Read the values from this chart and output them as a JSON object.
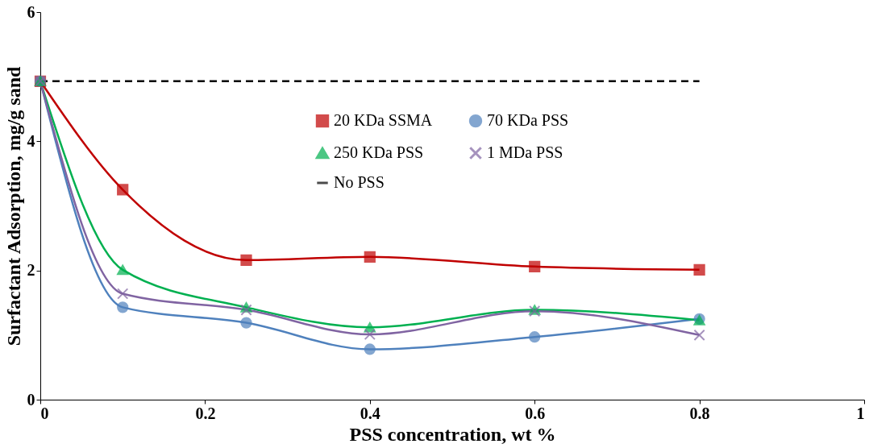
{
  "chart_data": {
    "type": "line",
    "xlabel": "PSS concentration, wt %",
    "ylabel": "Surfactant Adsorption, mg/g sand",
    "xlim": [
      0,
      1
    ],
    "xticks": [
      0,
      0.2,
      0.4,
      0.6,
      0.8,
      1
    ],
    "ylim": [
      0,
      6
    ],
    "yticks": [
      0,
      2,
      4,
      6
    ],
    "grid": false,
    "legend": "top right",
    "series": [
      {
        "name": "20 KDa SSMA",
        "color": "#c00000",
        "marker": "square",
        "line_style": "solid",
        "x": [
          0,
          0.1,
          0.25,
          0.4,
          0.6,
          0.8
        ],
        "values": [
          4.93,
          3.25,
          2.16,
          2.21,
          2.06,
          2.01
        ]
      },
      {
        "name": "70 KDa PSS",
        "color": "#4f81bd",
        "marker": "circle",
        "line_style": "solid",
        "x": [
          0,
          0.1,
          0.25,
          0.4,
          0.6,
          0.8
        ],
        "values": [
          4.93,
          1.43,
          1.19,
          0.78,
          0.97,
          1.25
        ]
      },
      {
        "name": "250 KDa PSS",
        "color": "#00b050",
        "marker": "triangle",
        "line_style": "solid",
        "x": [
          0,
          0.1,
          0.25,
          0.4,
          0.6,
          0.8
        ],
        "values": [
          4.93,
          2.01,
          1.43,
          1.12,
          1.39,
          1.23
        ]
      },
      {
        "name": "1 MDa PSS",
        "color": "#8064a2",
        "marker": "cross",
        "line_style": "solid",
        "x": [
          0,
          0.1,
          0.25,
          0.4,
          0.6,
          0.8
        ],
        "values": [
          4.93,
          1.64,
          1.39,
          1.01,
          1.37,
          1.0
        ]
      },
      {
        "name": "No PSS",
        "color": "#000000",
        "marker": "none",
        "line_style": "dashed",
        "x": [
          0,
          0.8
        ],
        "values": [
          4.93,
          4.93
        ]
      }
    ]
  }
}
